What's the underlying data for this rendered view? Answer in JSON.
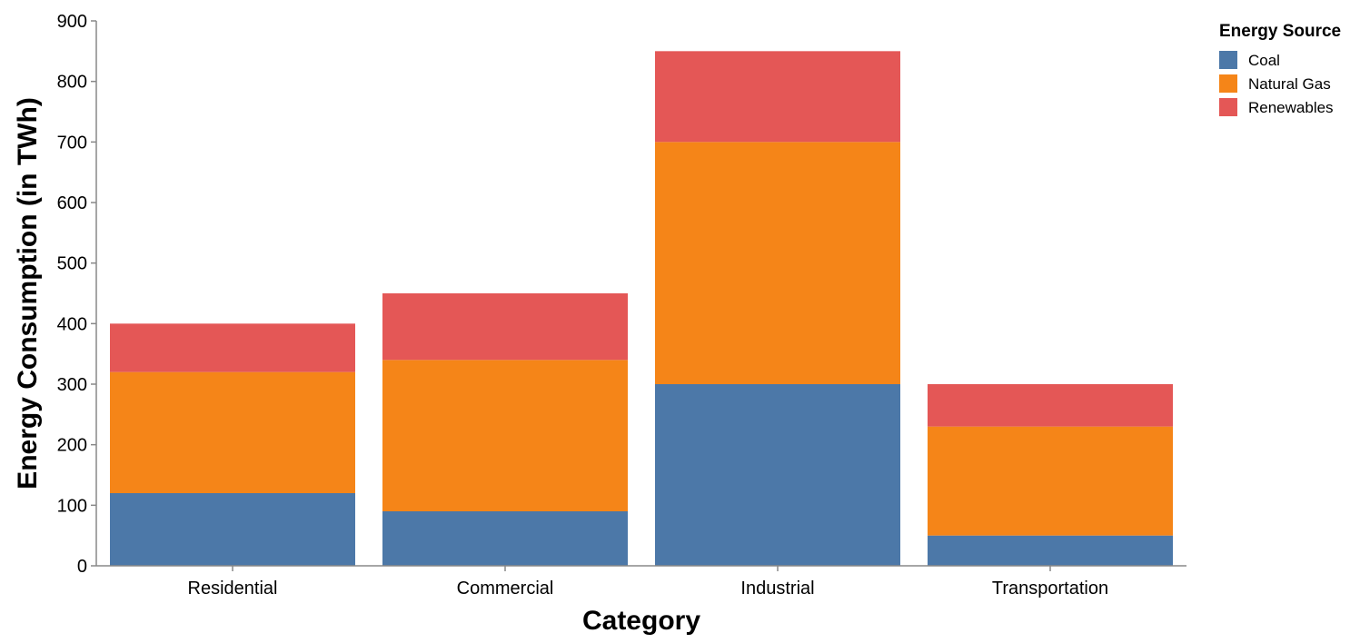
{
  "chart_data": {
    "type": "bar",
    "stacked": true,
    "categories": [
      "Residential",
      "Commercial",
      "Industrial",
      "Transportation"
    ],
    "series": [
      {
        "name": "Coal",
        "values": [
          120,
          90,
          300,
          50
        ],
        "color": "#4c78a8"
      },
      {
        "name": "Natural Gas",
        "values": [
          200,
          250,
          400,
          180
        ],
        "color": "#f58518"
      },
      {
        "name": "Renewables",
        "values": [
          80,
          110,
          150,
          70
        ],
        "color": "#e45756"
      }
    ],
    "xlabel": "Category",
    "ylabel": "Energy Consumption (in TWh)",
    "ylim": [
      0,
      900
    ],
    "yticks": [
      0,
      100,
      200,
      300,
      400,
      500,
      600,
      700,
      800,
      900
    ],
    "grid": false,
    "legend": {
      "title": "Energy Source",
      "position": "top-right"
    }
  }
}
